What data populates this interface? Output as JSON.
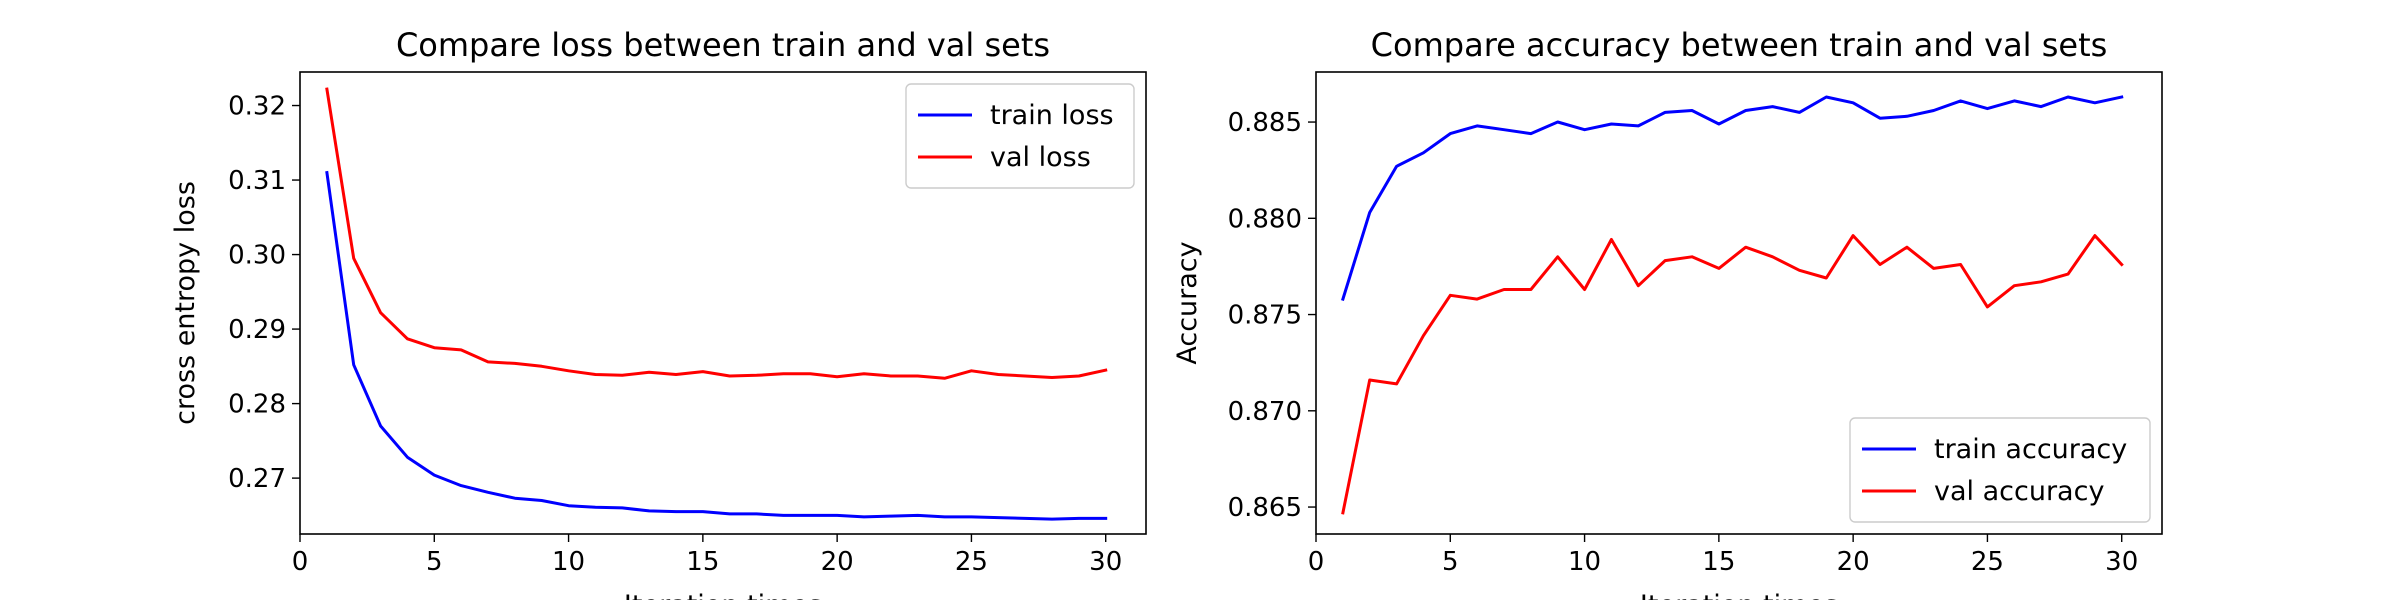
{
  "chart_data": [
    {
      "type": "line",
      "title": "Compare loss between train and val sets",
      "xlabel": "Iteration times",
      "ylabel": "cross entropy loss",
      "xlim": [
        0,
        31.5
      ],
      "ylim": [
        0.2625,
        0.3245
      ],
      "xticks": [
        0,
        5,
        10,
        15,
        20,
        25,
        30
      ],
      "yticks": [
        0.27,
        0.28,
        0.29,
        0.3,
        0.31,
        0.32
      ],
      "ytick_decimals": 2,
      "grid": false,
      "legend_position": "upper right",
      "x": [
        1,
        2,
        3,
        4,
        5,
        6,
        7,
        8,
        9,
        10,
        11,
        12,
        13,
        14,
        15,
        16,
        17,
        18,
        19,
        20,
        21,
        22,
        23,
        24,
        25,
        26,
        27,
        28,
        29,
        30
      ],
      "series": [
        {
          "name": "train loss",
          "color": "#0000ff",
          "values": [
            0.311,
            0.2852,
            0.277,
            0.2728,
            0.2704,
            0.269,
            0.2681,
            0.2673,
            0.267,
            0.2663,
            0.2661,
            0.266,
            0.2656,
            0.2655,
            0.2655,
            0.2652,
            0.2652,
            0.265,
            0.265,
            0.265,
            0.2648,
            0.2649,
            0.265,
            0.2648,
            0.2648,
            0.2647,
            0.2646,
            0.2645,
            0.2646,
            0.2646
          ]
        },
        {
          "name": "val loss",
          "color": "#ff0000",
          "values": [
            0.3222,
            0.2995,
            0.2922,
            0.2887,
            0.2875,
            0.2872,
            0.2856,
            0.2854,
            0.285,
            0.2844,
            0.2839,
            0.2838,
            0.2842,
            0.2839,
            0.2843,
            0.2837,
            0.2838,
            0.284,
            0.284,
            0.2836,
            0.284,
            0.2837,
            0.2837,
            0.2834,
            0.2844,
            0.2839,
            0.2837,
            0.2835,
            0.2837,
            0.2845
          ]
        }
      ]
    },
    {
      "type": "line",
      "title": "Compare accuracy between train and val sets",
      "xlabel": "Iteration times",
      "ylabel": "Accuracy",
      "xlim": [
        0,
        31.5
      ],
      "ylim": [
        0.8636,
        0.8876
      ],
      "xticks": [
        0,
        5,
        10,
        15,
        20,
        25,
        30
      ],
      "yticks": [
        0.865,
        0.87,
        0.875,
        0.88,
        0.885
      ],
      "ytick_decimals": 3,
      "grid": false,
      "legend_position": "lower right",
      "x": [
        1,
        2,
        3,
        4,
        5,
        6,
        7,
        8,
        9,
        10,
        11,
        12,
        13,
        14,
        15,
        16,
        17,
        18,
        19,
        20,
        21,
        22,
        23,
        24,
        25,
        26,
        27,
        28,
        29,
        30
      ],
      "series": [
        {
          "name": "train accuracy",
          "color": "#0000ff",
          "values": [
            0.8758,
            0.8803,
            0.8827,
            0.8834,
            0.8844,
            0.8848,
            0.8846,
            0.8844,
            0.885,
            0.8846,
            0.8849,
            0.8848,
            0.8855,
            0.8856,
            0.8849,
            0.8856,
            0.8858,
            0.8855,
            0.8863,
            0.886,
            0.8852,
            0.8853,
            0.8856,
            0.8861,
            0.8857,
            0.8861,
            0.8858,
            0.8863,
            0.886,
            0.8863
          ]
        },
        {
          "name": "val accuracy",
          "color": "#ff0000",
          "values": [
            0.8647,
            0.8716,
            0.8714,
            0.8739,
            0.876,
            0.8758,
            0.8763,
            0.8763,
            0.878,
            0.8763,
            0.8789,
            0.8765,
            0.8778,
            0.878,
            0.8774,
            0.8785,
            0.878,
            0.8773,
            0.8769,
            0.8791,
            0.8776,
            0.8785,
            0.8774,
            0.8776,
            0.8754,
            0.8765,
            0.8767,
            0.8771,
            0.8791,
            0.8776
          ]
        }
      ]
    }
  ]
}
